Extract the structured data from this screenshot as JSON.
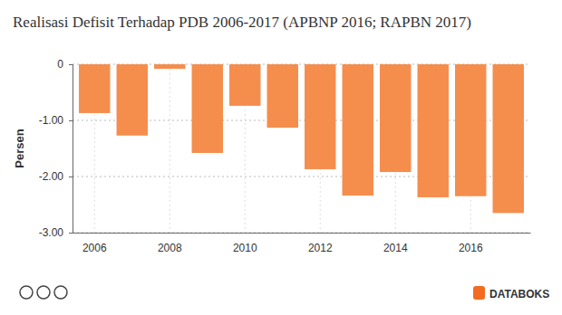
{
  "chart_data": {
    "type": "bar",
    "title": "Realisasi Defisit Terhadap PDB 2006-2017 (APBNP 2016; RAPBN 2017)",
    "y_label": "Persen",
    "categories": [
      "2006",
      null,
      "2008",
      null,
      "2010",
      null,
      "2012",
      null,
      "2014",
      null,
      "2016",
      null
    ],
    "values": [
      -0.87,
      -1.27,
      -0.08,
      -1.58,
      -0.74,
      -1.13,
      -1.87,
      -2.34,
      -1.92,
      -2.37,
      -2.35,
      -2.65
    ],
    "color": "#f58d4d",
    "ylim": [
      -3,
      0
    ],
    "yticks": [
      0,
      {
        "value": -1,
        "label": "-1.00"
      },
      {
        "value": -2,
        "label": "-2.00"
      },
      {
        "value": -3,
        "label": "-3.00"
      }
    ],
    "grid": true,
    "annotations": [
      "DATABOKS"
    ]
  }
}
